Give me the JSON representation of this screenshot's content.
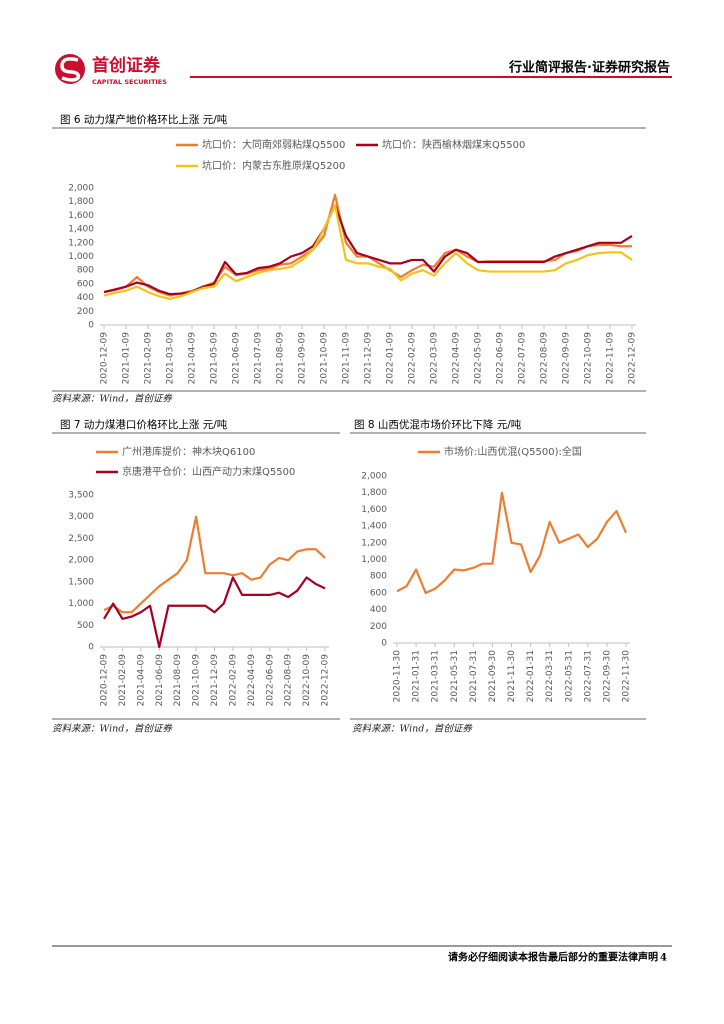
{
  "header": {
    "brand": "首创证券",
    "brand_en": "CAPITAL SECURITIES",
    "report_type": "行业简评报告·证券研究报告"
  },
  "footer": {
    "text": "请务必仔细阅读本报告最后部分的重要法律声明",
    "page": "4"
  },
  "chart_data": [
    {
      "type": "line",
      "title": "图 6 动力煤产地价格环比上涨  元/吨",
      "source": "资料来源：Wind，首创证券",
      "categories": [
        "2020-12-09",
        null,
        "2021-01-09",
        null,
        "2021-02-09",
        null,
        "2021-03-09",
        null,
        "2021-04-09",
        null,
        "2021-05-09",
        null,
        "2021-06-09",
        null,
        "2021-07-09",
        null,
        "2021-08-09",
        null,
        "2021-09-09",
        null,
        "2021-10-09",
        null,
        "2021-11-09",
        null,
        "2021-12-09",
        null,
        "2022-01-09",
        null,
        "2022-02-09",
        null,
        "2022-03-09",
        null,
        "2022-04-09",
        null,
        "2022-05-09",
        null,
        "2022-06-09",
        null,
        "2022-07-09",
        null,
        "2022-08-09",
        null,
        "2022-09-09",
        null,
        "2022-10-09",
        null,
        "2022-11-09",
        null,
        "2022-12-09"
      ],
      "series": [
        {
          "name": "坑口价：大同南郊弱粘煤Q5500",
          "color": "#ed7d31",
          "values": [
            480,
            510,
            560,
            700,
            560,
            480,
            430,
            460,
            500,
            560,
            620,
            850,
            730,
            750,
            800,
            820,
            880,
            900,
            1000,
            1100,
            1300,
            1900,
            1200,
            1000,
            1000,
            900,
            800,
            700,
            800,
            880,
            850,
            1050,
            1100,
            1000,
            920,
            930,
            930,
            930,
            930,
            930,
            930,
            950,
            1050,
            1080,
            1150,
            1170,
            1170,
            1150,
            1150
          ]
        },
        {
          "name": "坑口价：陕西榆林烟煤末Q5500",
          "color": "#a50021",
          "values": [
            480,
            520,
            560,
            620,
            580,
            500,
            450,
            460,
            480,
            560,
            600,
            920,
            740,
            760,
            830,
            850,
            900,
            1000,
            1050,
            1150,
            1400,
            1750,
            1300,
            1050,
            1000,
            950,
            900,
            900,
            950,
            950,
            780,
            1000,
            1100,
            1050,
            920,
            920,
            920,
            920,
            920,
            920,
            920,
            1000,
            1050,
            1100,
            1150,
            1200,
            1200,
            1200,
            1300
          ]
        },
        {
          "name": "坑口价：内蒙古东胜原煤Q5200",
          "color": "#f0c419",
          "values": [
            430,
            470,
            500,
            560,
            480,
            420,
            380,
            420,
            480,
            540,
            560,
            750,
            640,
            700,
            760,
            800,
            820,
            850,
            950,
            1100,
            1400,
            1750,
            950,
            900,
            900,
            850,
            820,
            650,
            750,
            800,
            720,
            900,
            1050,
            900,
            800,
            780,
            780,
            780,
            780,
            780,
            780,
            800,
            900,
            950,
            1020,
            1050,
            1060,
            1060,
            950
          ]
        }
      ],
      "ylim": [
        0,
        2000
      ],
      "yticks": [
        0,
        200,
        400,
        600,
        800,
        {
          "value": 1000,
          "label": "1,000"
        },
        {
          "value": 1200,
          "label": "1,200"
        },
        {
          "value": 1400,
          "label": "1,400"
        },
        {
          "value": 1600,
          "label": "1,600"
        },
        {
          "value": 1800,
          "label": "1,800"
        },
        {
          "value": 2000,
          "label": "2,000"
        }
      ]
    },
    {
      "type": "line",
      "title": "图 7 动力煤港口价格环比上涨  元/吨",
      "source": "资料来源：Wind，首创证券",
      "categories": [
        "2020-12-09",
        null,
        "2021-02-09",
        null,
        "2021-04-09",
        null,
        "2021-06-09",
        null,
        "2021-08-09",
        null,
        "2021-10-09",
        null,
        "2021-12-09",
        null,
        "2022-02-09",
        null,
        "2022-04-09",
        null,
        "2022-06-09",
        null,
        "2022-08-09",
        null,
        "2022-10-09",
        null,
        "2022-12-09"
      ],
      "series": [
        {
          "name": "广州港库提价：神木块Q6100",
          "color": "#ed7d31",
          "values": [
            850,
            950,
            800,
            800,
            1000,
            1200,
            1400,
            1550,
            1700,
            2000,
            3000,
            1700,
            1700,
            1700,
            1650,
            1700,
            1550,
            1600,
            1900,
            2050,
            2000,
            2200,
            2250,
            2250,
            2050
          ]
        },
        {
          "name": "京唐港平仓价：山西产动力末煤Q5500",
          "color": "#a50021",
          "values": [
            650,
            1000,
            650,
            700,
            800,
            950,
            0,
            950,
            950,
            950,
            950,
            950,
            800,
            1000,
            1600,
            1200,
            1200,
            1200,
            1200,
            1250,
            1150,
            1300,
            1600,
            1450,
            1350
          ]
        }
      ],
      "ylim": [
        0,
        3500
      ],
      "yticks": [
        0,
        500,
        {
          "value": 1000,
          "label": "1,000"
        },
        {
          "value": 1500,
          "label": "1,500"
        },
        {
          "value": 2000,
          "label": "2,000"
        },
        {
          "value": 2500,
          "label": "2,500"
        },
        {
          "value": 3000,
          "label": "3,000"
        },
        {
          "value": 3500,
          "label": "3,500"
        }
      ]
    },
    {
      "type": "line",
      "title": "图 8 山西优混市场价环比下降  元/吨",
      "source": "资料来源：Wind，首创证券",
      "categories": [
        "2020-11-30",
        null,
        "2021-01-31",
        null,
        "2021-03-31",
        null,
        "2021-05-31",
        null,
        "2021-07-31",
        null,
        "2021-09-30",
        null,
        "2021-11-30",
        null,
        "2022-01-31",
        null,
        "2022-03-31",
        null,
        "2022-05-31",
        null,
        "2022-07-31",
        null,
        "2022-09-30",
        null,
        "2022-11-30"
      ],
      "series": [
        {
          "name": "市场价:山西优混(Q5500):全国",
          "color": "#ed7d31",
          "values": [
            620,
            680,
            880,
            600,
            650,
            750,
            880,
            870,
            900,
            950,
            950,
            1800,
            1200,
            1180,
            850,
            1050,
            1450,
            1200,
            1250,
            1300,
            1150,
            1250,
            1450,
            1580,
            1320
          ]
        }
      ],
      "ylim": [
        0,
        2000
      ],
      "yticks": [
        0,
        200,
        400,
        600,
        800,
        {
          "value": 1000,
          "label": "1,000"
        },
        {
          "value": 1200,
          "label": "1,200"
        },
        {
          "value": 1400,
          "label": "1,400"
        },
        {
          "value": 1600,
          "label": "1,600"
        },
        {
          "value": 1800,
          "label": "1,800"
        },
        {
          "value": 2000,
          "label": "2,000"
        }
      ]
    }
  ]
}
